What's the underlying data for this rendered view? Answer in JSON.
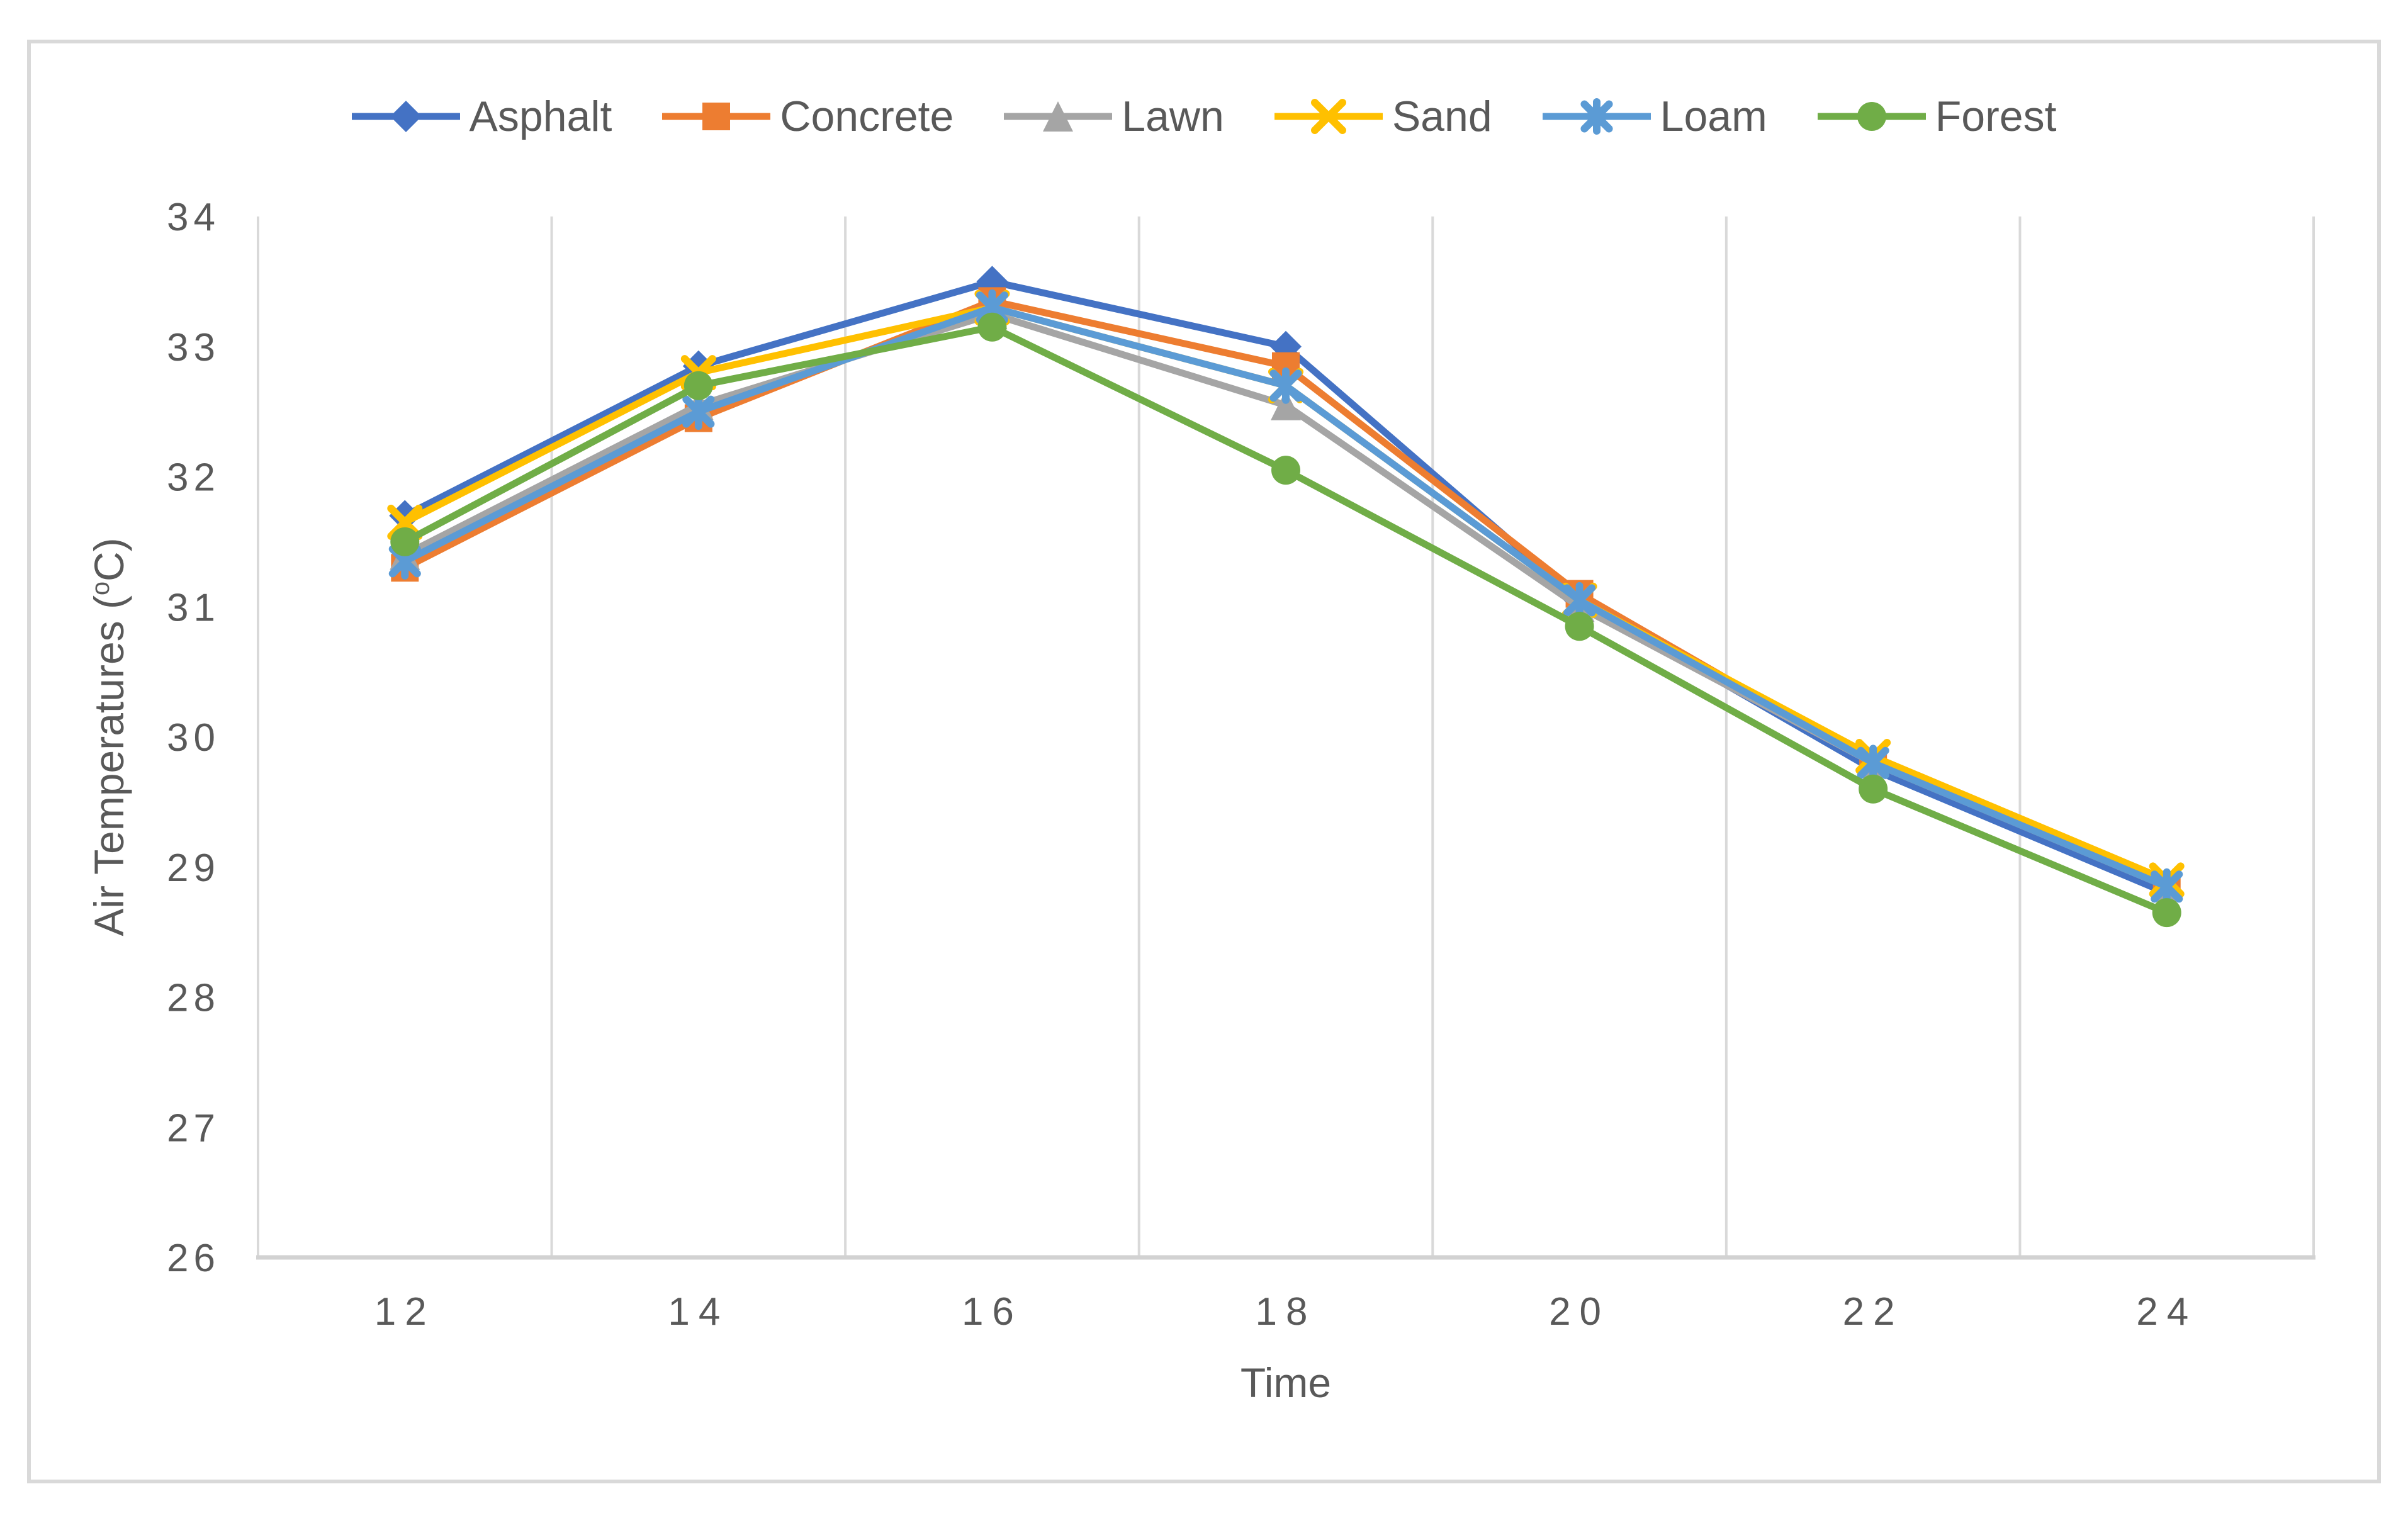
{
  "figure": {
    "border_color": "#D9D9D9",
    "background_color": "#FFFFFF"
  },
  "chart_data": {
    "type": "line",
    "title": "",
    "xlabel": "Time",
    "ylabel_prefix": "Air Temperatures (",
    "ylabel_sup": "o",
    "ylabel_suffix": "C)",
    "categories": [
      "12",
      "14",
      "16",
      "18",
      "20",
      "22",
      "24"
    ],
    "x": [
      12,
      14,
      16,
      18,
      20,
      22,
      24
    ],
    "yticks": [
      "26",
      "27",
      "28",
      "29",
      "30",
      "31",
      "32",
      "33",
      "34"
    ],
    "ylim": [
      26,
      34
    ],
    "grid": "vertical-only-between-categories",
    "legend_position": "top-center",
    "axis_color": "#D9D9D9",
    "axis_line_color": "#D2D2D2",
    "text_color": "#595959",
    "series": [
      {
        "name": "Asphalt",
        "color": "#4472C4",
        "marker": "diamond",
        "values": [
          31.7,
          32.85,
          33.5,
          33.0,
          31.05,
          29.75,
          28.8
        ]
      },
      {
        "name": "Concrete",
        "color": "#ED7D31",
        "marker": "square",
        "values": [
          31.3,
          32.45,
          33.35,
          32.85,
          31.1,
          29.8,
          28.85
        ]
      },
      {
        "name": "Lawn",
        "color": "#A5A5A5",
        "marker": "triangle",
        "values": [
          31.4,
          32.55,
          33.25,
          32.55,
          31.0,
          29.8,
          28.85
        ]
      },
      {
        "name": "Sand",
        "color": "#FFC000",
        "marker": "x",
        "values": [
          31.65,
          32.8,
          33.3,
          32.7,
          31.05,
          29.85,
          28.9
        ]
      },
      {
        "name": "Loam",
        "color": "#5B9BD5",
        "marker": "asterisk",
        "values": [
          31.35,
          32.5,
          33.3,
          32.7,
          31.05,
          29.8,
          28.85
        ]
      },
      {
        "name": "Forest",
        "color": "#70AD47",
        "marker": "circle",
        "values": [
          31.5,
          32.7,
          33.15,
          32.05,
          30.85,
          29.6,
          28.65
        ]
      }
    ]
  }
}
